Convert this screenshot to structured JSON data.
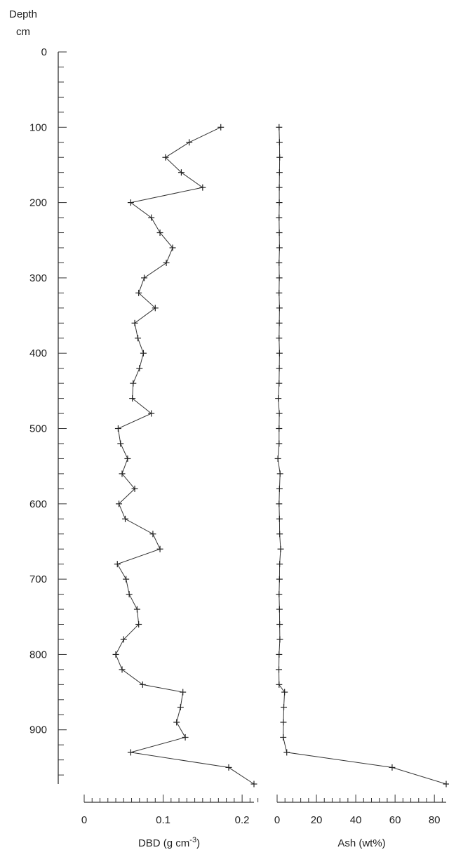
{
  "chart_data": {
    "type": "line",
    "depth_axis": {
      "label_line1": "Depth",
      "label_line2": "cm",
      "range": [
        0,
        972
      ],
      "tick_labels": [
        "0",
        "100",
        "200",
        "300",
        "400",
        "500",
        "600",
        "700",
        "800",
        "900"
      ],
      "tick_values": [
        0,
        100,
        200,
        300,
        400,
        500,
        600,
        700,
        800,
        900
      ],
      "minor_step": 20,
      "inverted": true
    },
    "panels": [
      {
        "id": "dbd",
        "xlabel_main": "DBD (g cm",
        "xlabel_sup": "-3",
        "xlabel_end": ")",
        "xlim": [
          0,
          0.215
        ],
        "tick_labels": [
          "0",
          "0.1",
          "0.2"
        ],
        "tick_values": [
          0,
          0.1,
          0.2
        ],
        "minor_step": 0.01,
        "series": [
          {
            "depth": [
              100,
              120,
              140,
              160,
              180,
              200,
              220,
              240,
              260,
              280,
              300,
              320,
              340,
              360,
              380,
              400,
              420,
              440,
              460,
              480,
              500,
              520,
              540,
              560,
              580,
              600,
              620,
              640,
              660,
              680,
              700,
              720,
              740,
              760,
              780,
              800,
              820,
              840,
              850,
              870,
              890,
              910,
              930,
              950,
              972
            ],
            "values": [
              0.173,
              0.133,
              0.103,
              0.123,
              0.15,
              0.059,
              0.085,
              0.096,
              0.112,
              0.104,
              0.076,
              0.069,
              0.09,
              0.064,
              0.068,
              0.075,
              0.07,
              0.062,
              0.061,
              0.085,
              0.043,
              0.046,
              0.055,
              0.048,
              0.064,
              0.044,
              0.052,
              0.087,
              0.096,
              0.042,
              0.053,
              0.057,
              0.067,
              0.069,
              0.05,
              0.04,
              0.048,
              0.074,
              0.125,
              0.122,
              0.117,
              0.128,
              0.059,
              0.183,
              0.215
            ]
          }
        ]
      },
      {
        "id": "ash",
        "xlabel_main": "Ash (wt%)",
        "xlim": [
          0,
          86
        ],
        "tick_labels": [
          "0",
          "20",
          "40",
          "60",
          "80"
        ],
        "tick_values": [
          0,
          20,
          40,
          60,
          80
        ],
        "minor_step": 4,
        "series": [
          {
            "depth": [
              100,
              120,
              140,
              160,
              180,
              200,
              220,
              240,
              260,
              280,
              300,
              320,
              340,
              360,
              380,
              400,
              420,
              440,
              460,
              480,
              500,
              520,
              540,
              560,
              580,
              600,
              620,
              640,
              660,
              680,
              700,
              720,
              740,
              760,
              780,
              800,
              820,
              840,
              850,
              870,
              890,
              910,
              930,
              950,
              972
            ],
            "values": [
              1.0,
              1.2,
              1.3,
              1.2,
              1.1,
              1.1,
              1.0,
              1.1,
              1.2,
              1.0,
              1.1,
              1.0,
              1.2,
              1.1,
              1.0,
              1.2,
              1.1,
              1.0,
              0.6,
              1.1,
              1.0,
              1.0,
              0.4,
              1.5,
              1.2,
              1.0,
              1.2,
              1.3,
              1.8,
              1.3,
              1.2,
              1.0,
              1.2,
              1.3,
              1.4,
              1.0,
              0.9,
              1.0,
              3.8,
              3.4,
              3.2,
              3.1,
              4.9,
              58.5,
              86.0
            ]
          }
        ]
      }
    ]
  }
}
